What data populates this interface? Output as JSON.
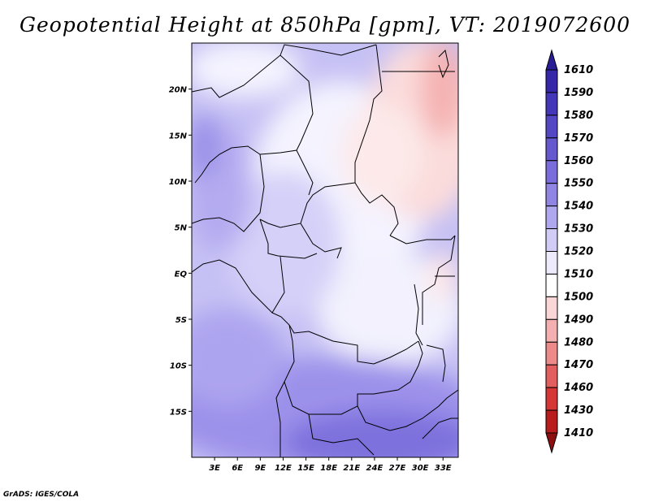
{
  "title": "Geopotential Height at 850hPa [gpm], VT: 2019072600",
  "credit": "GrADS: IGES/COLA",
  "map": {
    "lat_labels": [
      "20N",
      "15N",
      "10N",
      "5N",
      "EQ",
      "5S",
      "10S",
      "15S"
    ],
    "lat_values": [
      20,
      15,
      10,
      5,
      0,
      -5,
      -10,
      -15
    ],
    "lon_labels": [
      "3E",
      "6E",
      "9E",
      "12E",
      "15E",
      "18E",
      "21E",
      "24E",
      "27E",
      "30E",
      "33E"
    ],
    "lon_values": [
      3,
      6,
      9,
      12,
      15,
      18,
      21,
      24,
      27,
      30,
      33
    ],
    "lon_range": [
      0,
      35
    ],
    "lat_range": [
      -20,
      25
    ]
  },
  "colorbar": {
    "labels": [
      "1610",
      "1590",
      "1580",
      "1570",
      "1560",
      "1550",
      "1540",
      "1530",
      "1520",
      "1510",
      "1500",
      "1490",
      "1480",
      "1470",
      "1460",
      "1430",
      "1410"
    ],
    "colors": [
      "#2a1e96",
      "#3527a8",
      "#4436b8",
      "#5447c4",
      "#6658cf",
      "#7a6ddb",
      "#9185e4",
      "#b0a8ef",
      "#d0ccf6",
      "#eceafb",
      "#ffffff",
      "#fbd6d6",
      "#f4b0b0",
      "#ec8a8a",
      "#e35f5f",
      "#d63636",
      "#b81c1c",
      "#8e0f0f"
    ]
  }
}
